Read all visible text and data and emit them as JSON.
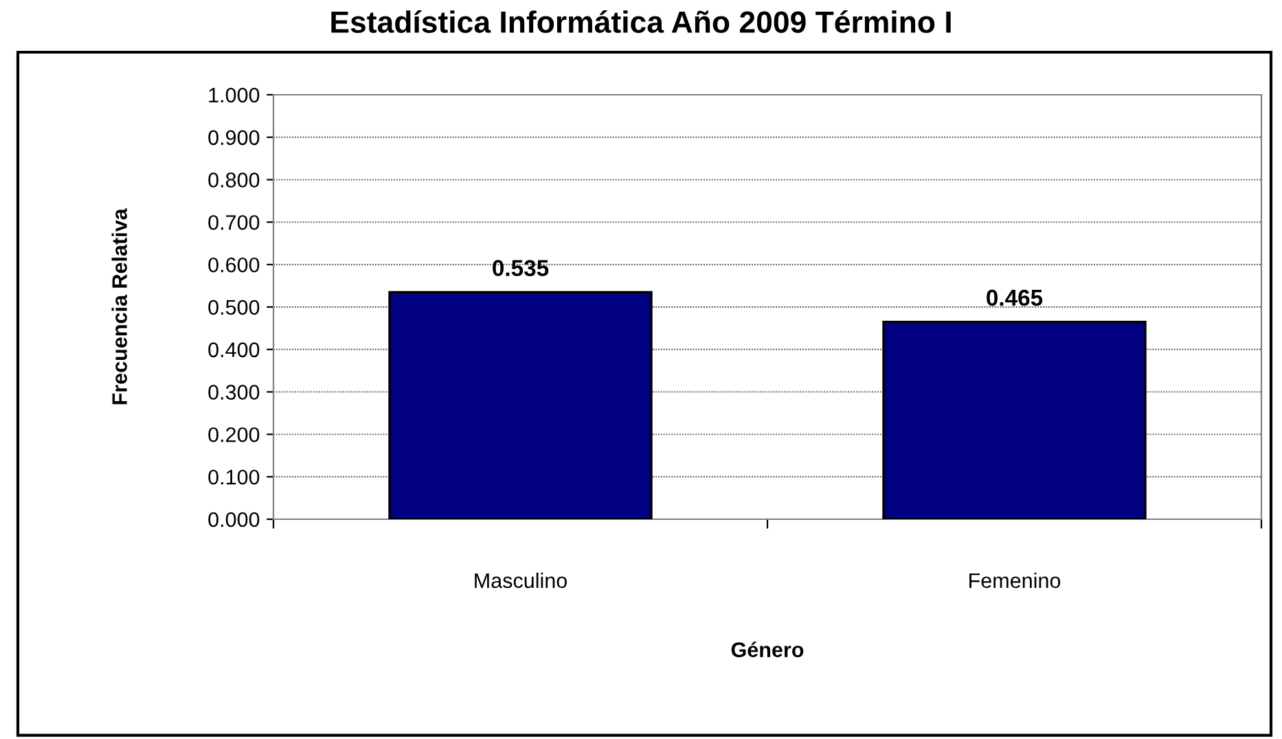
{
  "chart_data": {
    "type": "bar",
    "title": "Estadística Informática Año 2009 Término I",
    "xlabel": "Género",
    "ylabel": "Frecuencia Relativa",
    "categories": [
      "Masculino",
      "Femenino"
    ],
    "values": [
      0.535,
      0.465
    ],
    "color": "#000080",
    "ylim": [
      0,
      1
    ],
    "yticks": [
      {
        "value": 0,
        "label": "0.000"
      },
      {
        "value": 0.1,
        "label": "0.100"
      },
      {
        "value": 0.2,
        "label": "0.200"
      },
      {
        "value": 0.3,
        "label": "0.300"
      },
      {
        "value": 0.4,
        "label": "0.400"
      },
      {
        "value": 0.5,
        "label": "0.500"
      },
      {
        "value": 0.6,
        "label": "0.600"
      },
      {
        "value": 0.7,
        "label": "0.700"
      },
      {
        "value": 0.8,
        "label": "0.800"
      },
      {
        "value": 0.9,
        "label": "0.900"
      },
      {
        "value": 1,
        "label": "1.000"
      }
    ],
    "value_labels": [
      "0.535",
      "0.465"
    ],
    "grid": "y",
    "legend": false
  }
}
